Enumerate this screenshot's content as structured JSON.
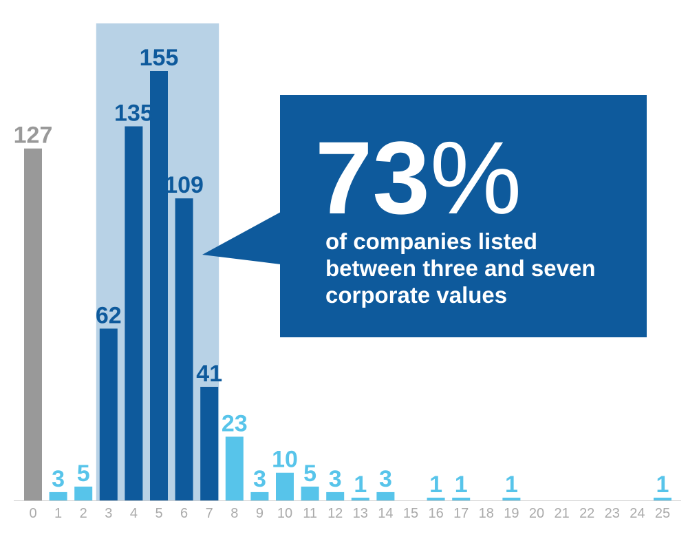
{
  "colors": {
    "gray": "#999999",
    "dark_blue": "#0e5a9c",
    "light_blue": "#57c4ea",
    "highlight_band": "#b8d2e6",
    "tick_text": "#aaaaaa",
    "callout_bg": "#0e5a9c",
    "callout_text": "#ffffff",
    "axis_line": "#cccccc"
  },
  "chart_data": {
    "type": "bar",
    "categories": [
      "0",
      "1",
      "2",
      "3",
      "4",
      "5",
      "6",
      "7",
      "8",
      "9",
      "10",
      "11",
      "12",
      "13",
      "14",
      "15",
      "16",
      "17",
      "18",
      "19",
      "20",
      "21",
      "22",
      "23",
      "24",
      "25"
    ],
    "values": [
      127,
      3,
      5,
      62,
      135,
      155,
      109,
      41,
      23,
      3,
      10,
      5,
      3,
      1,
      3,
      0,
      1,
      1,
      0,
      1,
      0,
      0,
      0,
      0,
      0,
      1
    ],
    "value_labels": [
      "127",
      "3",
      "5",
      "62",
      "135",
      "155",
      "109",
      "41",
      "23",
      "3",
      "10",
      "5",
      "3",
      "1",
      "3",
      "",
      "1",
      "1",
      "",
      "1",
      "",
      "",
      "",
      "",
      "",
      "1"
    ],
    "highlight_range": [
      "3",
      "7"
    ],
    "ylim": [
      0,
      160
    ],
    "grid": false,
    "legend": "none",
    "title": "",
    "xlabel": "",
    "ylabel": ""
  },
  "callout": {
    "big_number": "73",
    "percent_sign": "%",
    "lines": [
      "of companies listed",
      "between three and seven",
      "corporate values"
    ]
  }
}
